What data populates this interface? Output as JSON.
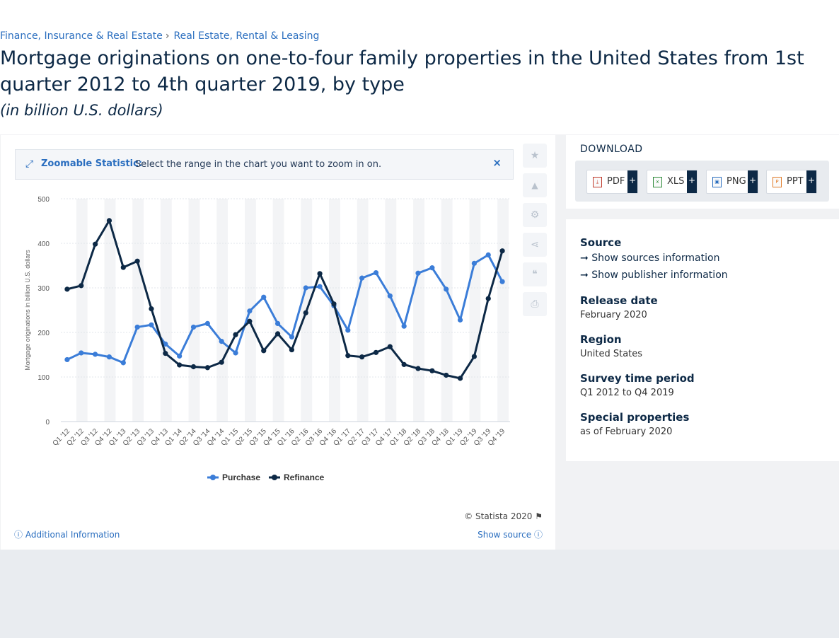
{
  "breadcrumb": [
    "Finance, Insurance & Real Estate",
    "Real Estate, Rental & Leasing"
  ],
  "title": "Mortgage originations on one-to-four family properties in the United States from 1st quarter 2012 to 4th quarter 2019, by type",
  "subtitle": "(in billion U.S. dollars)",
  "zoom": {
    "icon": "expand-icon",
    "label": "Zoomable Statistic:",
    "text": "Select the range in the chart you want to zoom in on.",
    "close": "×"
  },
  "tools": [
    {
      "name": "star-icon",
      "glyph": "★"
    },
    {
      "name": "bell-icon",
      "glyph": "🔔"
    },
    {
      "name": "gear-icon",
      "glyph": "⚙"
    },
    {
      "name": "share-icon",
      "glyph": "⋖"
    },
    {
      "name": "quote-icon",
      "glyph": "❝"
    },
    {
      "name": "print-icon",
      "glyph": "⎙"
    }
  ],
  "copyright": "© Statista 2020",
  "additional_info": "Additional Information",
  "show_source": "Show source",
  "download": {
    "title": "DOWNLOAD",
    "buttons": [
      {
        "label": "PDF",
        "plus": "+",
        "color": "#c0392b"
      },
      {
        "label": "XLS",
        "plus": "+",
        "color": "#2e8b3a"
      },
      {
        "label": "PNG",
        "plus": "+",
        "color": "#2a6ebf"
      },
      {
        "label": "PPT",
        "plus": "+",
        "color": "#e07b28"
      }
    ]
  },
  "source_panel": {
    "source_heading": "Source",
    "show_sources": "Show sources information",
    "show_publisher": "Show publisher information",
    "release_heading": "Release date",
    "release_value": "February 2020",
    "region_heading": "Region",
    "region_value": "United States",
    "survey_heading": "Survey time period",
    "survey_value": "Q1 2012 to Q4 2019",
    "special_heading": "Special properties",
    "special_value": "as of February 2020"
  },
  "chart_data": {
    "type": "line",
    "ylabel": "Mortgage originations in billion U.S. dollars",
    "ylim": [
      0,
      500
    ],
    "yticks": [
      0,
      100,
      200,
      300,
      400,
      500
    ],
    "grid": true,
    "legend_position": "bottom",
    "categories": [
      "Q1 '12",
      "Q2 '12",
      "Q3 '12",
      "Q4 '12",
      "Q1 '13",
      "Q2 '13",
      "Q3 '13",
      "Q4 '13",
      "Q1 '14",
      "Q2 '14",
      "Q3 '14",
      "Q4 '14",
      "Q1 '15",
      "Q2 '15",
      "Q3 '15",
      "Q4 '15",
      "Q1 '16",
      "Q2 '16",
      "Q3 '16",
      "Q4 '16",
      "Q1 '17",
      "Q2 '17",
      "Q3 '17",
      "Q4 '17",
      "Q1 '18",
      "Q2 '18",
      "Q3 '18",
      "Q4 '18",
      "Q1 '19",
      "Q2 '19",
      "Q3 '19",
      "Q4 '19"
    ],
    "series": [
      {
        "name": "Purchase",
        "color": "#3b7dd8",
        "values": [
          139,
          154,
          151,
          145,
          132,
          212,
          217,
          174,
          147,
          212,
          220,
          180,
          154,
          248,
          279,
          220,
          190,
          300,
          303,
          260,
          205,
          322,
          334,
          282,
          214,
          333,
          345,
          297,
          228,
          355,
          374,
          314
        ]
      },
      {
        "name": "Refinance",
        "color": "#0d2946",
        "values": [
          297,
          305,
          398,
          451,
          346,
          360,
          253,
          153,
          127,
          123,
          121,
          133,
          195,
          225,
          159,
          197,
          161,
          244,
          332,
          264,
          148,
          145,
          155,
          168,
          128,
          119,
          114,
          104,
          97,
          146,
          276,
          383
        ]
      }
    ]
  }
}
